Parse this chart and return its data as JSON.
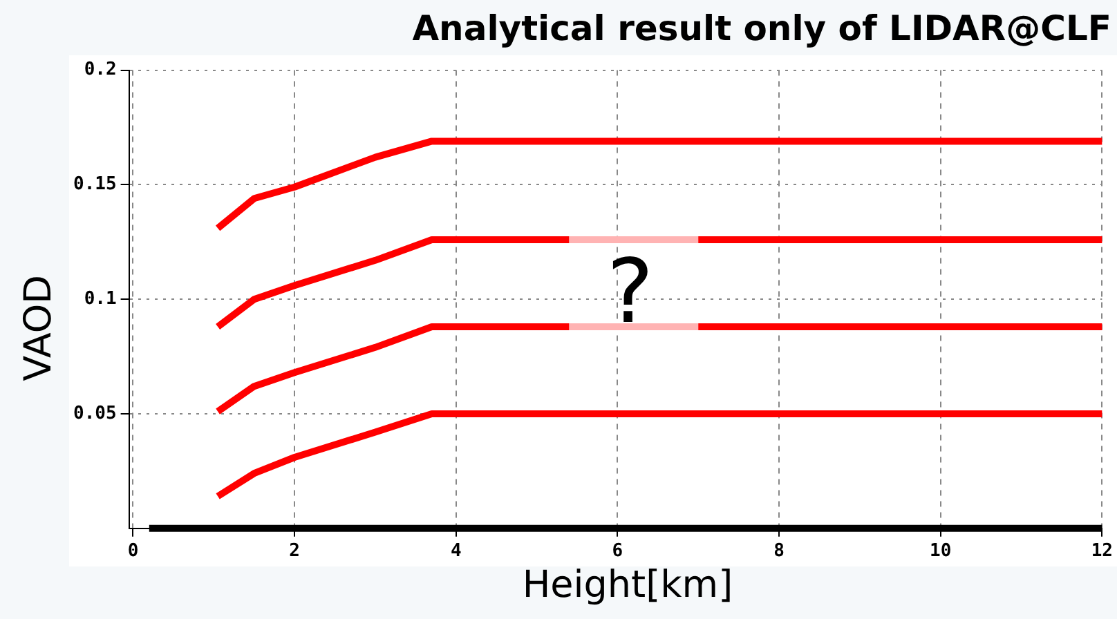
{
  "chart_data": {
    "type": "line",
    "title": "Analytical result only of LIDAR@CLF",
    "xlabel": "Height[km]",
    "ylabel": "VAOD",
    "xlim": [
      -0.05,
      12
    ],
    "xticks": [
      0,
      2,
      4,
      6,
      8,
      10,
      12
    ],
    "ylim": [
      0,
      0.2
    ],
    "yticks": [
      0.05,
      0.1,
      0.15,
      0.2
    ],
    "grid": true,
    "legend": false,
    "marker": "none",
    "line_style": "solid",
    "annotations": [
      "?"
    ],
    "series": [
      {
        "color": "#ff0000",
        "x": [
          1.05,
          1.5,
          2,
          3,
          3.7,
          12
        ],
        "values": [
          0.131,
          0.144,
          0.149,
          0.162,
          0.169,
          0.169
        ]
      },
      {
        "color": "#ff0000",
        "x": [
          1.05,
          1.5,
          2,
          3,
          3.7,
          5.4,
          6.2,
          7.0,
          12
        ],
        "values": [
          0.088,
          0.1,
          0.106,
          0.117,
          0.126,
          0.126,
          null,
          0.126,
          0.126
        ]
      },
      {
        "color": "#ffb3b3",
        "x": [
          5.4,
          7.0
        ],
        "values": [
          0.126,
          0.126
        ]
      },
      {
        "color": "#ff0000",
        "x": [
          1.05,
          1.5,
          2,
          3,
          3.7,
          5.4,
          6.2,
          7.0,
          12
        ],
        "values": [
          0.051,
          0.062,
          0.068,
          0.079,
          0.088,
          0.088,
          null,
          0.088,
          0.088
        ]
      },
      {
        "color": "#ffb3b3",
        "x": [
          5.4,
          7.0
        ],
        "values": [
          0.088,
          0.088
        ]
      },
      {
        "color": "#ff0000",
        "x": [
          1.05,
          1.5,
          2,
          3,
          3.7,
          12
        ],
        "values": [
          0.014,
          0.024,
          0.031,
          0.042,
          0.05,
          0.05
        ]
      },
      {
        "color": "#000000",
        "x": [
          0.2,
          12
        ],
        "values": [
          0,
          0
        ]
      }
    ]
  }
}
